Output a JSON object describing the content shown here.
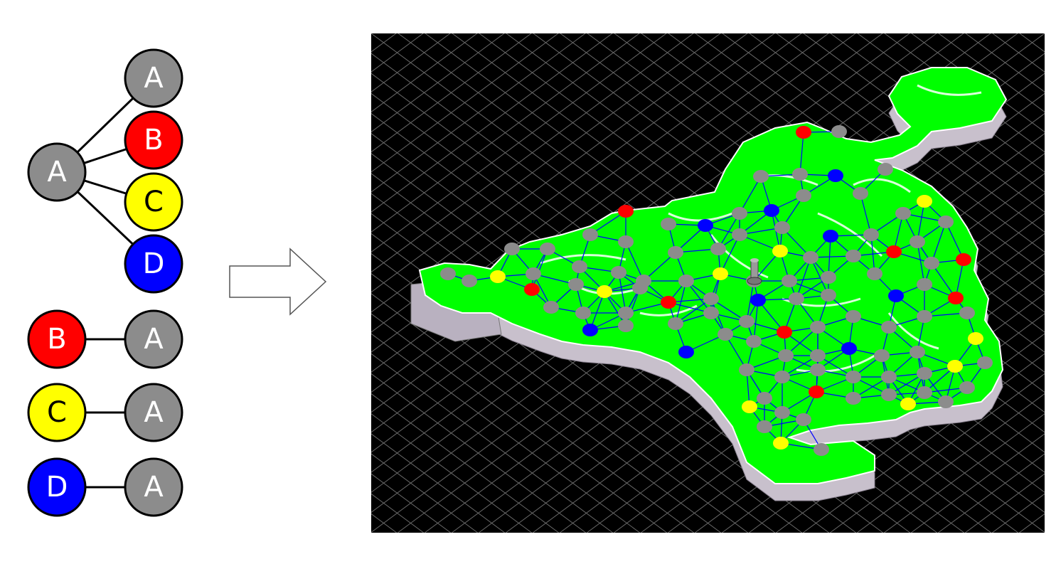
{
  "legend": {
    "hub": {
      "label": "A",
      "color": "#8c8c8c"
    },
    "hub_links": [
      {
        "label": "A",
        "color": "#8c8c8c"
      },
      {
        "label": "B",
        "color": "#ff0000"
      },
      {
        "label": "C",
        "color": "#ffff00"
      },
      {
        "label": "D",
        "color": "#0000ff"
      }
    ],
    "pairs": [
      {
        "left": {
          "label": "B",
          "color": "#ff0000"
        },
        "right": {
          "label": "A",
          "color": "#8c8c8c"
        }
      },
      {
        "left": {
          "label": "C",
          "color": "#ffff00"
        },
        "right": {
          "label": "A",
          "color": "#8c8c8c"
        }
      },
      {
        "left": {
          "label": "D",
          "color": "#0000ff"
        },
        "right": {
          "label": "A",
          "color": "#8c8c8c"
        }
      }
    ]
  },
  "map_view": {
    "background": "#000000",
    "grid_color": "#6a6a6a",
    "terrain_color": "#00ff00",
    "cliff_color": "#c8c0cc",
    "link_color": "#0000ff"
  }
}
